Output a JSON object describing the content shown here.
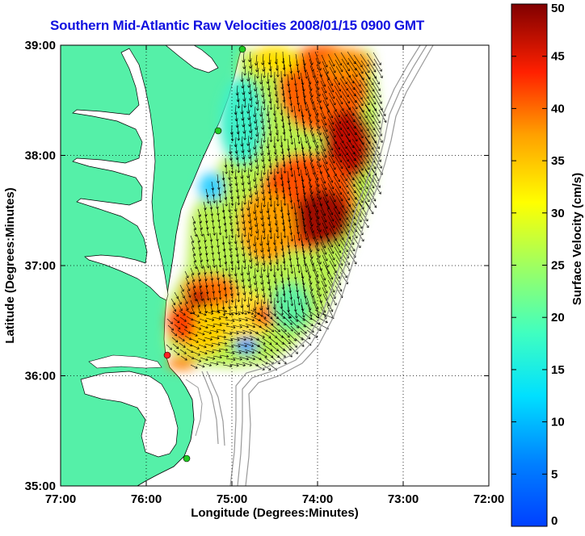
{
  "title": "Southern Mid-Atlantic Raw Velocities 2008/01/15 0900 GMT",
  "x_axis": {
    "label": "Longitude (Degrees:Minutes)",
    "ticks": [
      "77:00",
      "76:00",
      "75:00",
      "74:00",
      "73:00",
      "72:00"
    ],
    "range": [
      -77,
      -72
    ]
  },
  "y_axis": {
    "label": "Latitude (Degrees:Minutes)",
    "ticks": [
      "35:00",
      "36:00",
      "37:00",
      "38:00",
      "39:00"
    ],
    "range": [
      35,
      39
    ]
  },
  "colorbar": {
    "label": "Surface Velocity (cm/s)",
    "ticks": [
      "0",
      "5",
      "10",
      "15",
      "20",
      "25",
      "30",
      "35",
      "40",
      "45",
      "50"
    ],
    "range": [
      0,
      50
    ],
    "colormap": "jet"
  },
  "colors": {
    "land": "#55f0a8",
    "ocean": "#ffffff",
    "title": "#1010e0",
    "site_marker": "#22cc22",
    "site_marker_red": "#ff2222",
    "bathymetry": "#999999"
  },
  "gridlines": "dotted"
}
